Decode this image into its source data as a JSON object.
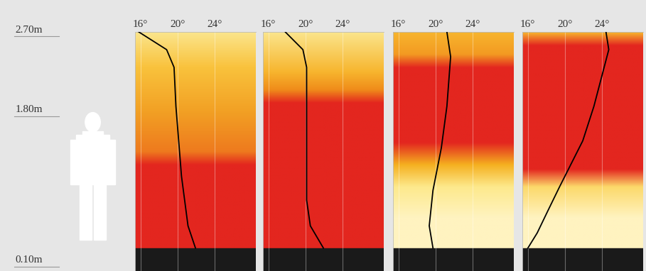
{
  "chart_data": [
    {
      "type": "line",
      "xlim": [
        15.4,
        28.4
      ],
      "xticks": [
        {
          "value": 16,
          "label": "16°"
        },
        {
          "value": 20,
          "label": "20°"
        },
        {
          "value": 24,
          "label": "24°"
        }
      ],
      "ylim": [
        0,
        2.7
      ],
      "yticks": [
        {
          "value": 2.7,
          "label": "2.70m"
        },
        {
          "value": 1.8,
          "label": "1.80m"
        },
        {
          "value": 0.1,
          "label": "0.10m"
        }
      ],
      "grid": true,
      "tick_labels": "x",
      "color": "#000000",
      "x": [
        15.8,
        18.8,
        19.6,
        19.8,
        20.4,
        21.1,
        21.9
      ],
      "y": [
        2.7,
        2.5,
        2.3,
        1.86,
        1.07,
        0.51,
        0.26
      ],
      "background": {
        "heights": [
          2.7,
          2.3,
          1.8,
          1.35,
          1.2,
          0.26
        ],
        "colors": [
          "#fbe58c",
          "#f9c23c",
          "#f2a024",
          "#ee7a1e",
          "#e3261f",
          "#e3261f"
        ]
      }
    },
    {
      "type": "line",
      "xlim": [
        15.4,
        28.4
      ],
      "xticks": [
        {
          "value": 16,
          "label": "16°"
        },
        {
          "value": 20,
          "label": "20°"
        },
        {
          "value": 24,
          "label": "24°"
        }
      ],
      "ylim": [
        0,
        2.7
      ],
      "yticks": [
        {
          "value": 2.7,
          "label": "2.70m"
        },
        {
          "value": 1.8,
          "label": "1.80m"
        },
        {
          "value": 0.1,
          "label": "0.10m"
        }
      ],
      "grid": true,
      "tick_labels": "x",
      "color": "#000000",
      "x": [
        17.8,
        19.7,
        20.1,
        20.1,
        20.1,
        20.5,
        21.9
      ],
      "y": [
        2.7,
        2.5,
        2.3,
        1.5,
        0.8,
        0.51,
        0.26
      ],
      "background": {
        "heights": [
          2.7,
          2.25,
          2.05,
          1.9,
          0.26
        ],
        "colors": [
          "#fbe58c",
          "#f7b52e",
          "#f08c1a",
          "#e3261f",
          "#e3261f"
        ]
      }
    },
    {
      "type": "line",
      "xlim": [
        15.4,
        28.4
      ],
      "xticks": [
        {
          "value": 16,
          "label": "16°"
        },
        {
          "value": 20,
          "label": "20°"
        },
        {
          "value": 24,
          "label": "24°"
        }
      ],
      "ylim": [
        0,
        2.7
      ],
      "yticks": [
        {
          "value": 2.7,
          "label": "2.70m"
        },
        {
          "value": 1.8,
          "label": "1.80m"
        },
        {
          "value": 0.1,
          "label": "0.10m"
        }
      ],
      "grid": true,
      "tick_labels": "x",
      "color": "#000000",
      "x": [
        21.2,
        21.6,
        21.2,
        20.6,
        19.7,
        19.3,
        19.7
      ],
      "y": [
        2.7,
        2.42,
        1.86,
        1.39,
        0.91,
        0.51,
        0.26
      ],
      "background": {
        "heights": [
          2.7,
          2.45,
          2.3,
          1.45,
          1.2,
          0.95,
          0.6,
          0.26
        ],
        "colors": [
          "#f7b52e",
          "#f39a22",
          "#e3261f",
          "#e3261f",
          "#f5b020",
          "#fde98c",
          "#fff3c0",
          "#fff3c0"
        ]
      }
    },
    {
      "type": "line",
      "xlim": [
        15.4,
        28.4
      ],
      "xticks": [
        {
          "value": 16,
          "label": "16°"
        },
        {
          "value": 20,
          "label": "20°"
        },
        {
          "value": 24,
          "label": "24°"
        }
      ],
      "ylim": [
        0,
        2.7
      ],
      "yticks": [
        {
          "value": 2.7,
          "label": "2.70m"
        },
        {
          "value": 1.8,
          "label": "1.80m"
        },
        {
          "value": 0.1,
          "label": "0.10m"
        }
      ],
      "grid": true,
      "tick_labels": "x",
      "color": "#000000",
      "x": [
        24.4,
        24.7,
        23.1,
        21.9,
        19.4,
        18.1,
        17.0,
        16.0
      ],
      "y": [
        2.7,
        2.5,
        1.86,
        1.47,
        0.95,
        0.67,
        0.43,
        0.26
      ],
      "background": {
        "heights": [
          2.7,
          2.55,
          1.15,
          0.95,
          0.6,
          0.26
        ],
        "colors": [
          "#f7b52e",
          "#e3261f",
          "#e3261f",
          "#fcd96a",
          "#fff3c0",
          "#fff3c0"
        ]
      }
    }
  ]
}
